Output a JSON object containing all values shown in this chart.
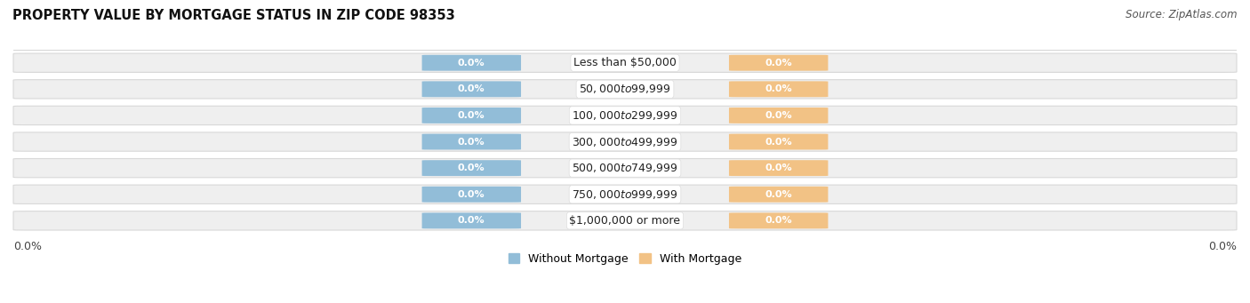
{
  "title": "PROPERTY VALUE BY MORTGAGE STATUS IN ZIP CODE 98353",
  "source": "Source: ZipAtlas.com",
  "categories": [
    "Less than $50,000",
    "$50,000 to $99,999",
    "$100,000 to $299,999",
    "$300,000 to $499,999",
    "$500,000 to $749,999",
    "$750,000 to $999,999",
    "$1,000,000 or more"
  ],
  "without_mortgage": [
    0.0,
    0.0,
    0.0,
    0.0,
    0.0,
    0.0,
    0.0
  ],
  "with_mortgage": [
    0.0,
    0.0,
    0.0,
    0.0,
    0.0,
    0.0,
    0.0
  ],
  "without_mortgage_color": "#92bdd8",
  "with_mortgage_color": "#f2c285",
  "bar_bg_color": "#efefef",
  "bar_bg_edge_color": "#d8d8d8",
  "figsize": [
    14.06,
    3.41
  ],
  "dpi": 100,
  "title_fontsize": 10.5,
  "source_fontsize": 8.5,
  "label_fontsize": 9,
  "value_fontsize": 8,
  "legend_fontsize": 9
}
